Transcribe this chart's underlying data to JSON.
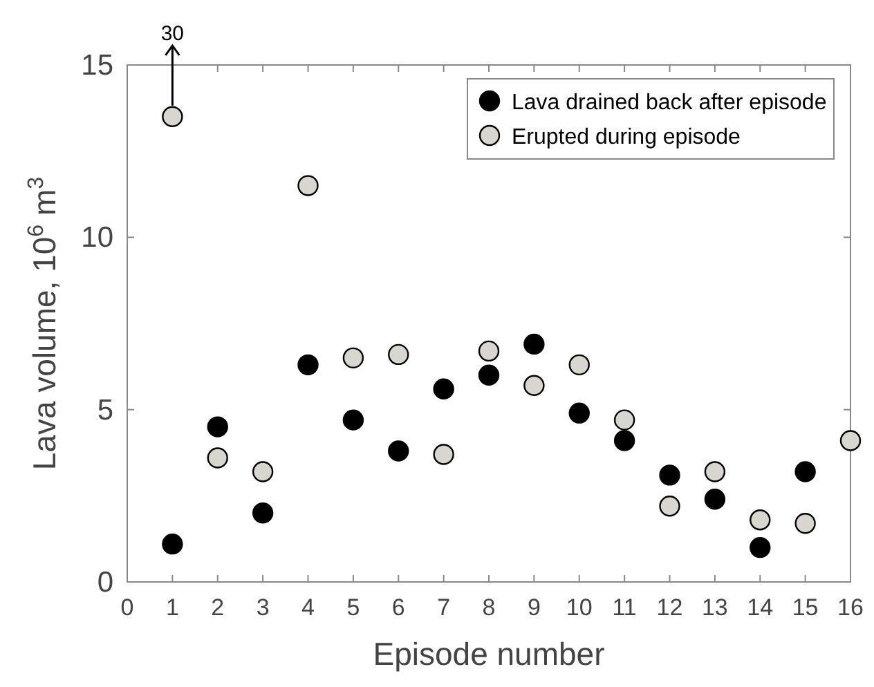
{
  "chart_data": {
    "type": "scatter",
    "xlabel": "Episode number",
    "ylabel": "Lava volume, 10$^{6}$ m$^{3}$",
    "x": [
      1,
      2,
      3,
      4,
      5,
      6,
      7,
      8,
      9,
      10,
      11,
      12,
      13,
      14,
      15,
      16
    ],
    "series": [
      {
        "name": "Lava drained back after episode",
        "color": "#000000",
        "values": [
          1.1,
          4.5,
          2.0,
          6.3,
          4.7,
          3.8,
          5.6,
          6.0,
          6.9,
          4.9,
          4.1,
          3.1,
          2.4,
          1.0,
          3.2,
          null
        ]
      },
      {
        "name": "Erupted during episode",
        "color": "#d9d6cf",
        "values": [
          13.5,
          3.6,
          3.2,
          11.5,
          6.5,
          6.6,
          3.7,
          6.7,
          5.7,
          6.3,
          4.7,
          2.2,
          3.2,
          1.8,
          1.7,
          4.1
        ]
      }
    ],
    "xlim": [
      0,
      16
    ],
    "xticks": [
      0,
      1,
      2,
      3,
      4,
      5,
      6,
      7,
      8,
      9,
      10,
      11,
      12,
      13,
      14,
      15,
      16
    ],
    "ylim": [
      0,
      15
    ],
    "yticks": [
      0,
      5,
      10,
      15
    ],
    "annotations": [
      {
        "text": "30",
        "x": 1,
        "y": 13.5
      }
    ],
    "legend": "top right",
    "marker": "circle",
    "grid": false
  }
}
